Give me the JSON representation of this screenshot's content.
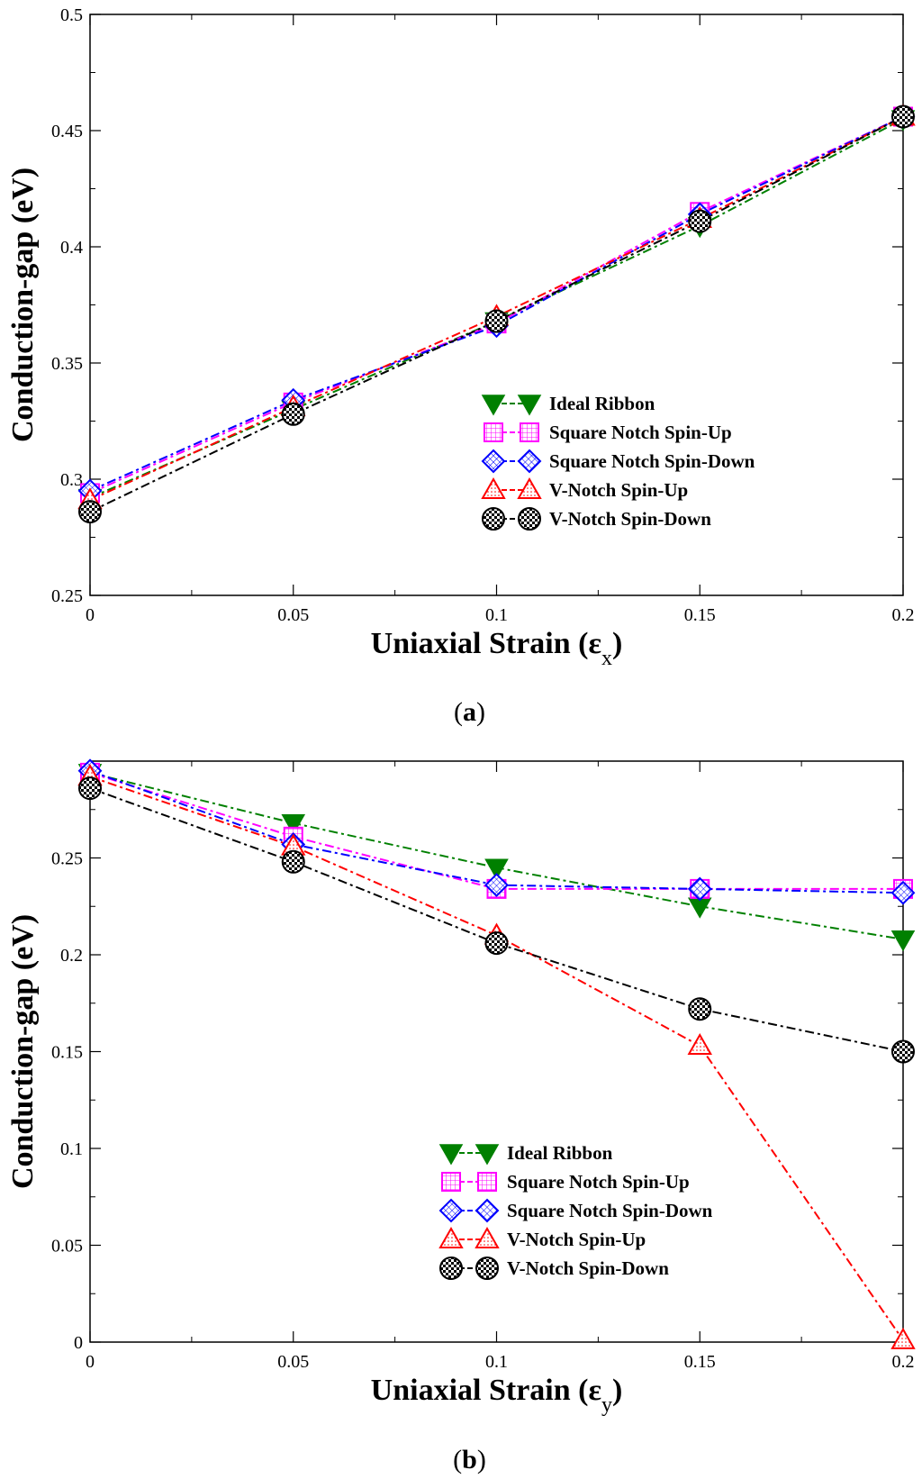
{
  "colors": {
    "ideal": "#008000",
    "sq_up": "#ff00ff",
    "sq_down": "#0000ff",
    "v_up": "#ff0000",
    "v_down": "#000000"
  },
  "chart_data": [
    {
      "type": "line",
      "panel_label": "a",
      "xlabel": "Uniaxial Strain (ε",
      "xlabel_sub": "x",
      "ylabel": "Conduction-gap (eV)",
      "xlim": [
        0,
        0.2
      ],
      "ylim": [
        0.25,
        0.5
      ],
      "xticks": [
        0,
        0.05,
        0.1,
        0.15,
        0.2
      ],
      "xtick_labels": [
        "0",
        "0.05",
        "0.1",
        "0.15",
        "0.2"
      ],
      "yticks": [
        0.25,
        0.3,
        0.35,
        0.4,
        0.45,
        0.5
      ],
      "ytick_labels": [
        "0.25",
        "0.3",
        "0.35",
        "0.4",
        "0.45",
        "0.5"
      ],
      "legend_position": "center-right",
      "x": [
        0,
        0.05,
        0.1,
        0.15,
        0.2
      ],
      "series": [
        {
          "name": "Ideal Ribbon",
          "marker": "down-triangle",
          "color_key": "ideal",
          "values": [
            0.292,
            0.33,
            0.368,
            0.409,
            0.455
          ]
        },
        {
          "name": "Square Notch Spin-Up",
          "marker": "square",
          "color_key": "sq_up",
          "values": [
            0.294,
            0.333,
            0.367,
            0.415,
            0.456
          ]
        },
        {
          "name": "Square Notch Spin-Down",
          "marker": "diamond",
          "color_key": "sq_down",
          "values": [
            0.295,
            0.334,
            0.366,
            0.414,
            0.456
          ]
        },
        {
          "name": "V-Notch Spin-Up",
          "marker": "up-triangle",
          "color_key": "v_up",
          "values": [
            0.291,
            0.331,
            0.37,
            0.412,
            0.456
          ]
        },
        {
          "name": "V-Notch Spin-Down",
          "marker": "checker-circle",
          "color_key": "v_down",
          "values": [
            0.286,
            0.328,
            0.368,
            0.411,
            0.456
          ]
        }
      ]
    },
    {
      "type": "line",
      "panel_label": "b",
      "xlabel": "Uniaxial Strain (ε",
      "xlabel_sub": "y",
      "ylabel": "Conduction-gap (eV)",
      "xlim": [
        0,
        0.2
      ],
      "ylim": [
        0,
        0.3
      ],
      "xticks": [
        0,
        0.05,
        0.1,
        0.15,
        0.2
      ],
      "xtick_labels": [
        "0",
        "0.05",
        "0.1",
        "0.15",
        "0.2"
      ],
      "yticks": [
        0,
        0.05,
        0.1,
        0.15,
        0.2,
        0.25
      ],
      "ytick_labels": [
        "0",
        "0.05",
        "0.1",
        "0.15",
        "0.2",
        "0.25"
      ],
      "legend_position": "lower-center",
      "x": [
        0,
        0.05,
        0.1,
        0.15,
        0.2
      ],
      "series": [
        {
          "name": "Ideal Ribbon",
          "marker": "down-triangle",
          "color_key": "ideal",
          "values": [
            0.294,
            0.268,
            0.245,
            0.225,
            0.208
          ]
        },
        {
          "name": "Square Notch Spin-Up",
          "marker": "square",
          "color_key": "sq_up",
          "values": [
            0.294,
            0.261,
            0.234,
            0.234,
            0.234
          ]
        },
        {
          "name": "Square Notch Spin-Down",
          "marker": "diamond",
          "color_key": "sq_down",
          "values": [
            0.295,
            0.257,
            0.236,
            0.234,
            0.232
          ]
        },
        {
          "name": "V-Notch Spin-Up",
          "marker": "up-triangle",
          "color_key": "v_up",
          "values": [
            0.292,
            0.256,
            0.21,
            0.153,
            0.001
          ]
        },
        {
          "name": "V-Notch Spin-Down",
          "marker": "checker-circle",
          "color_key": "v_down",
          "values": [
            0.286,
            0.248,
            0.206,
            0.172,
            0.15
          ]
        }
      ]
    }
  ]
}
